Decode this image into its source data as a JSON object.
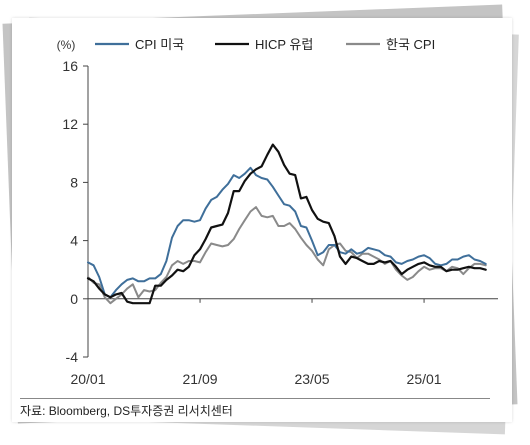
{
  "chart_data": {
    "type": "line",
    "unit": "(%)",
    "ylim": [
      -4,
      16
    ],
    "yticks": [
      "16",
      "12",
      "8",
      "4",
      "0",
      "-4"
    ],
    "xlim": [
      2020.0,
      2026.1
    ],
    "xticks": [
      {
        "label": "20/01",
        "x": 2020.0
      },
      {
        "label": "21/09",
        "x": 2021.667
      },
      {
        "label": "23/05",
        "x": 2023.333
      },
      {
        "label": "25/01",
        "x": 2025.0
      }
    ],
    "legend_position": "top",
    "series": [
      {
        "name": "CPI 미국",
        "color": "#3f6f9a",
        "points": [
          [
            2020.0,
            2.5
          ],
          [
            2020.083,
            2.3
          ],
          [
            2020.167,
            1.5
          ],
          [
            2020.25,
            0.3
          ],
          [
            2020.333,
            0.1
          ],
          [
            2020.417,
            0.6
          ],
          [
            2020.5,
            1.0
          ],
          [
            2020.583,
            1.3
          ],
          [
            2020.667,
            1.4
          ],
          [
            2020.75,
            1.2
          ],
          [
            2020.833,
            1.2
          ],
          [
            2020.917,
            1.4
          ],
          [
            2021.0,
            1.4
          ],
          [
            2021.083,
            1.7
          ],
          [
            2021.167,
            2.6
          ],
          [
            2021.25,
            4.2
          ],
          [
            2021.333,
            5.0
          ],
          [
            2021.417,
            5.4
          ],
          [
            2021.5,
            5.4
          ],
          [
            2021.583,
            5.3
          ],
          [
            2021.667,
            5.4
          ],
          [
            2021.75,
            6.2
          ],
          [
            2021.833,
            6.8
          ],
          [
            2021.917,
            7.0
          ],
          [
            2022.0,
            7.5
          ],
          [
            2022.083,
            7.9
          ],
          [
            2022.167,
            8.5
          ],
          [
            2022.25,
            8.3
          ],
          [
            2022.333,
            8.6
          ],
          [
            2022.417,
            9.0
          ],
          [
            2022.5,
            8.5
          ],
          [
            2022.583,
            8.3
          ],
          [
            2022.667,
            8.2
          ],
          [
            2022.75,
            7.7
          ],
          [
            2022.833,
            7.1
          ],
          [
            2022.917,
            6.5
          ],
          [
            2023.0,
            6.4
          ],
          [
            2023.083,
            6.0
          ],
          [
            2023.167,
            5.0
          ],
          [
            2023.25,
            4.9
          ],
          [
            2023.333,
            4.0
          ],
          [
            2023.417,
            3.0
          ],
          [
            2023.5,
            3.2
          ],
          [
            2023.583,
            3.7
          ],
          [
            2023.667,
            3.7
          ],
          [
            2023.75,
            3.2
          ],
          [
            2023.833,
            3.1
          ],
          [
            2023.917,
            3.4
          ],
          [
            2024.0,
            3.1
          ],
          [
            2024.083,
            3.2
          ],
          [
            2024.167,
            3.5
          ],
          [
            2024.25,
            3.4
          ],
          [
            2024.333,
            3.3
          ],
          [
            2024.417,
            3.0
          ],
          [
            2024.5,
            2.9
          ],
          [
            2024.583,
            2.5
          ],
          [
            2024.667,
            2.4
          ],
          [
            2024.75,
            2.6
          ],
          [
            2024.833,
            2.7
          ],
          [
            2024.917,
            2.9
          ],
          [
            2025.0,
            3.0
          ],
          [
            2025.083,
            2.8
          ],
          [
            2025.167,
            2.4
          ],
          [
            2025.25,
            2.3
          ],
          [
            2025.333,
            2.4
          ],
          [
            2025.417,
            2.7
          ],
          [
            2025.5,
            2.7
          ],
          [
            2025.583,
            2.9
          ],
          [
            2025.667,
            3.0
          ],
          [
            2025.75,
            2.7
          ],
          [
            2025.833,
            2.6
          ],
          [
            2025.917,
            2.4
          ]
        ]
      },
      {
        "name": "HICP 유럽",
        "color": "#111111",
        "points": [
          [
            2020.0,
            1.4
          ],
          [
            2020.083,
            1.2
          ],
          [
            2020.167,
            0.7
          ],
          [
            2020.25,
            0.3
          ],
          [
            2020.333,
            0.1
          ],
          [
            2020.417,
            0.3
          ],
          [
            2020.5,
            0.4
          ],
          [
            2020.583,
            -0.2
          ],
          [
            2020.667,
            -0.3
          ],
          [
            2020.75,
            -0.3
          ],
          [
            2020.833,
            -0.3
          ],
          [
            2020.917,
            -0.3
          ],
          [
            2021.0,
            0.9
          ],
          [
            2021.083,
            0.9
          ],
          [
            2021.167,
            1.3
          ],
          [
            2021.25,
            1.6
          ],
          [
            2021.333,
            2.0
          ],
          [
            2021.417,
            1.9
          ],
          [
            2021.5,
            2.2
          ],
          [
            2021.583,
            3.0
          ],
          [
            2021.667,
            3.4
          ],
          [
            2021.75,
            4.1
          ],
          [
            2021.833,
            4.9
          ],
          [
            2021.917,
            5.0
          ],
          [
            2022.0,
            5.1
          ],
          [
            2022.083,
            5.9
          ],
          [
            2022.167,
            7.4
          ],
          [
            2022.25,
            7.4
          ],
          [
            2022.333,
            8.1
          ],
          [
            2022.417,
            8.6
          ],
          [
            2022.5,
            8.9
          ],
          [
            2022.583,
            9.1
          ],
          [
            2022.667,
            9.9
          ],
          [
            2022.75,
            10.6
          ],
          [
            2022.833,
            10.1
          ],
          [
            2022.917,
            9.2
          ],
          [
            2023.0,
            8.6
          ],
          [
            2023.083,
            8.5
          ],
          [
            2023.167,
            6.9
          ],
          [
            2023.25,
            7.0
          ],
          [
            2023.333,
            6.1
          ],
          [
            2023.417,
            5.5
          ],
          [
            2023.5,
            5.3
          ],
          [
            2023.583,
            5.2
          ],
          [
            2023.667,
            4.3
          ],
          [
            2023.75,
            2.9
          ],
          [
            2023.833,
            2.4
          ],
          [
            2023.917,
            2.9
          ],
          [
            2024.0,
            2.8
          ],
          [
            2024.083,
            2.6
          ],
          [
            2024.167,
            2.4
          ],
          [
            2024.25,
            2.4
          ],
          [
            2024.333,
            2.6
          ],
          [
            2024.417,
            2.5
          ],
          [
            2024.5,
            2.6
          ],
          [
            2024.583,
            2.2
          ],
          [
            2024.667,
            1.7
          ],
          [
            2024.75,
            2.0
          ],
          [
            2024.833,
            2.2
          ],
          [
            2024.917,
            2.4
          ],
          [
            2025.0,
            2.5
          ],
          [
            2025.083,
            2.3
          ],
          [
            2025.167,
            2.2
          ],
          [
            2025.25,
            2.2
          ],
          [
            2025.333,
            1.9
          ],
          [
            2025.417,
            2.0
          ],
          [
            2025.5,
            2.0
          ],
          [
            2025.583,
            2.1
          ],
          [
            2025.667,
            2.2
          ],
          [
            2025.75,
            2.1
          ],
          [
            2025.833,
            2.1
          ],
          [
            2025.917,
            2.0
          ]
        ]
      },
      {
        "name": "한국 CPI",
        "color": "#8a8a8a",
        "points": [
          [
            2020.0,
            1.5
          ],
          [
            2020.083,
            1.1
          ],
          [
            2020.167,
            1.0
          ],
          [
            2020.25,
            0.1
          ],
          [
            2020.333,
            -0.3
          ],
          [
            2020.417,
            0.0
          ],
          [
            2020.5,
            0.3
          ],
          [
            2020.583,
            0.7
          ],
          [
            2020.667,
            1.0
          ],
          [
            2020.75,
            0.1
          ],
          [
            2020.833,
            0.6
          ],
          [
            2020.917,
            0.5
          ],
          [
            2021.0,
            0.6
          ],
          [
            2021.083,
            1.1
          ],
          [
            2021.167,
            1.5
          ],
          [
            2021.25,
            2.3
          ],
          [
            2021.333,
            2.6
          ],
          [
            2021.417,
            2.4
          ],
          [
            2021.5,
            2.6
          ],
          [
            2021.583,
            2.6
          ],
          [
            2021.667,
            2.5
          ],
          [
            2021.75,
            3.2
          ],
          [
            2021.833,
            3.8
          ],
          [
            2021.917,
            3.7
          ],
          [
            2022.0,
            3.6
          ],
          [
            2022.083,
            3.7
          ],
          [
            2022.167,
            4.1
          ],
          [
            2022.25,
            4.8
          ],
          [
            2022.333,
            5.4
          ],
          [
            2022.417,
            6.0
          ],
          [
            2022.5,
            6.3
          ],
          [
            2022.583,
            5.7
          ],
          [
            2022.667,
            5.6
          ],
          [
            2022.75,
            5.7
          ],
          [
            2022.833,
            5.0
          ],
          [
            2022.917,
            5.0
          ],
          [
            2023.0,
            5.2
          ],
          [
            2023.083,
            4.8
          ],
          [
            2023.167,
            4.2
          ],
          [
            2023.25,
            3.7
          ],
          [
            2023.333,
            3.3
          ],
          [
            2023.417,
            2.7
          ],
          [
            2023.5,
            2.3
          ],
          [
            2023.583,
            3.4
          ],
          [
            2023.667,
            3.7
          ],
          [
            2023.75,
            3.8
          ],
          [
            2023.833,
            3.3
          ],
          [
            2023.917,
            3.2
          ],
          [
            2024.0,
            2.8
          ],
          [
            2024.083,
            3.1
          ],
          [
            2024.167,
            3.1
          ],
          [
            2024.25,
            2.9
          ],
          [
            2024.333,
            2.7
          ],
          [
            2024.417,
            2.4
          ],
          [
            2024.5,
            2.6
          ],
          [
            2024.583,
            2.0
          ],
          [
            2024.667,
            1.6
          ],
          [
            2024.75,
            1.3
          ],
          [
            2024.833,
            1.5
          ],
          [
            2024.917,
            1.9
          ],
          [
            2025.0,
            2.2
          ],
          [
            2025.083,
            2.0
          ],
          [
            2025.167,
            2.1
          ],
          [
            2025.25,
            2.1
          ],
          [
            2025.333,
            1.9
          ],
          [
            2025.417,
            2.2
          ],
          [
            2025.5,
            2.1
          ],
          [
            2025.583,
            1.7
          ],
          [
            2025.667,
            2.1
          ],
          [
            2025.75,
            2.4
          ],
          [
            2025.833,
            2.4
          ],
          [
            2025.917,
            2.3
          ]
        ]
      }
    ]
  },
  "source": "자료: Bloomberg, DS투자증권 리서치센터"
}
